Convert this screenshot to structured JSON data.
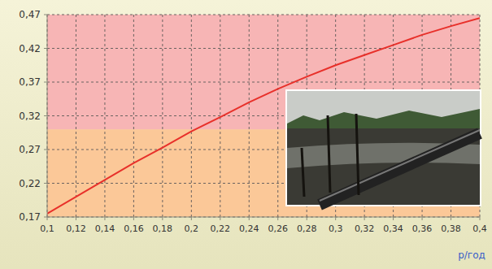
{
  "chart_data": {
    "type": "line",
    "x_label": "р/год",
    "x": [
      0.1,
      0.12,
      0.14,
      0.16,
      0.18,
      0.2,
      0.22,
      0.24,
      0.26,
      0.28,
      0.3,
      0.32,
      0.34,
      0.36,
      0.38,
      0.4
    ],
    "values": [
      0.175,
      0.2,
      0.225,
      0.25,
      0.273,
      0.297,
      0.318,
      0.34,
      0.36,
      0.378,
      0.395,
      0.41,
      0.425,
      0.44,
      0.453,
      0.465
    ],
    "color": "#e8302a",
    "xlim": [
      0.1,
      0.4
    ],
    "xticks": [
      {
        "value": 0.1,
        "label": "0,1"
      },
      {
        "value": 0.12,
        "label": "0,12"
      },
      {
        "value": 0.14,
        "label": "0,14"
      },
      {
        "value": 0.16,
        "label": "0,16"
      },
      {
        "value": 0.18,
        "label": "0,18"
      },
      {
        "value": 0.2,
        "label": "0,2"
      },
      {
        "value": 0.22,
        "label": "0,22"
      },
      {
        "value": 0.24,
        "label": "0,24"
      },
      {
        "value": 0.26,
        "label": "0,26"
      },
      {
        "value": 0.28,
        "label": "0,28"
      },
      {
        "value": 0.3,
        "label": "0,3"
      },
      {
        "value": 0.32,
        "label": "0,32"
      },
      {
        "value": 0.34,
        "label": "0,34"
      },
      {
        "value": 0.36,
        "label": "0,36"
      },
      {
        "value": 0.38,
        "label": "0,38"
      },
      {
        "value": 0.4,
        "label": "0,4"
      }
    ],
    "ylim": [
      0.17,
      0.47
    ],
    "yticks": [
      {
        "value": 0.17,
        "label": "0,17"
      },
      {
        "value": 0.22,
        "label": "0,22"
      },
      {
        "value": 0.27,
        "label": "0,27"
      },
      {
        "value": 0.32,
        "label": "0,32"
      },
      {
        "value": 0.37,
        "label": "0,37"
      },
      {
        "value": 0.42,
        "label": "0,42"
      },
      {
        "value": 0.47,
        "label": "0,47"
      }
    ],
    "grid": true,
    "zones": [
      {
        "from": 0.17,
        "to": 0.3,
        "color": "#fbc898"
      },
      {
        "from": 0.3,
        "to": 0.47,
        "color": "#f7b5b5"
      }
    ]
  }
}
